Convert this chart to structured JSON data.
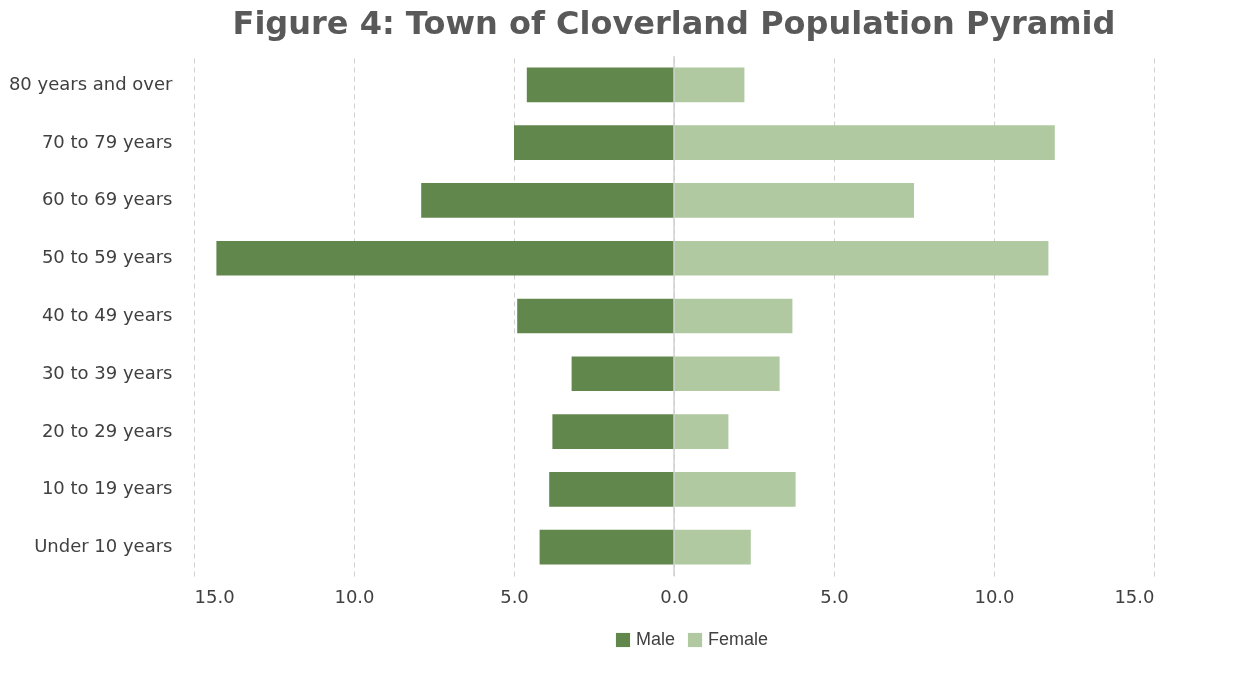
{
  "chart_data": {
    "type": "bar",
    "orientation": "horizontal",
    "stacked": true,
    "title": "Figure 4: Town of Cloverland Population Pyramid",
    "categories": [
      "80 years and over",
      "70 to 79 years",
      "60 to 69 years",
      "50 to 59 years",
      "40 to 49 years",
      "30 to 39 years",
      "20 to 29 years",
      "10 to 19 years",
      "Under 10 years"
    ],
    "series": [
      {
        "name": "Male",
        "color": "#62874c",
        "values": [
          -4.6,
          -5.0,
          -7.9,
          -14.3,
          -4.9,
          -3.2,
          -3.8,
          -3.9,
          -4.2
        ]
      },
      {
        "name": "Female",
        "color": "#b0c9a0",
        "values": [
          2.2,
          11.9,
          7.5,
          11.7,
          3.7,
          3.3,
          1.7,
          3.8,
          2.4
        ]
      }
    ],
    "xlim": [
      -15,
      15
    ],
    "xticks": [
      {
        "value": -15,
        "label": "15.0"
      },
      {
        "value": -10,
        "label": "10.0"
      },
      {
        "value": -5,
        "label": "5.0"
      },
      {
        "value": 0,
        "label": "0.0"
      },
      {
        "value": 5,
        "label": "5.0"
      },
      {
        "value": 10,
        "label": "10.0"
      },
      {
        "value": 15,
        "label": "15.0"
      }
    ],
    "grid": "x",
    "legend": "bottom"
  }
}
